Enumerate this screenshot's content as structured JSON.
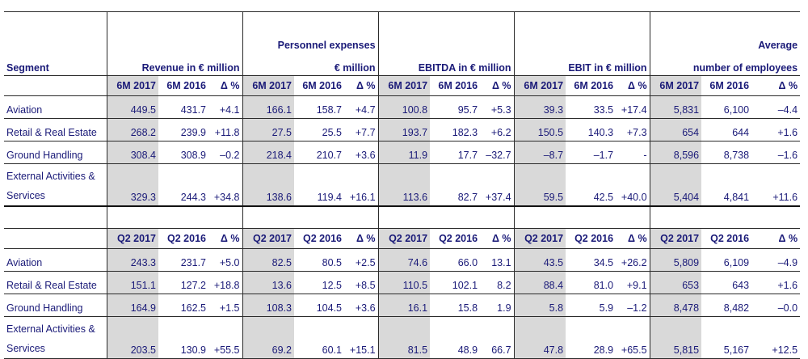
{
  "headers": {
    "segment": "Segment",
    "revenue": "Revenue in € million",
    "personnel_line1": "Personnel expenses",
    "personnel_line2": "€ million",
    "ebitda": "EBITDA in € million",
    "ebit": "EBIT in € million",
    "employees_line1": "Average",
    "employees_line2": "number of employees"
  },
  "period1": {
    "subheaders": [
      "6M 2017",
      "6M 2016",
      "Δ %"
    ],
    "rows": [
      {
        "segment": "Aviation",
        "values": [
          "449.5",
          "431.7",
          "+4.1",
          "166.1",
          "158.7",
          "+4.7",
          "100.8",
          "95.7",
          "+5.3",
          "39.3",
          "33.5",
          "+17.4",
          "5,831",
          "6,100",
          "–4.4"
        ]
      },
      {
        "segment": "Retail & Real Estate",
        "values": [
          "268.2",
          "239.9",
          "+11.8",
          "27.5",
          "25.5",
          "+7.7",
          "193.7",
          "182.3",
          "+6.2",
          "150.5",
          "140.3",
          "+7.3",
          "654",
          "644",
          "+1.6"
        ]
      },
      {
        "segment": "Ground Handling",
        "values": [
          "308.4",
          "308.9",
          "–0.2",
          "218.4",
          "210.7",
          "+3.6",
          "11.9",
          "17.7",
          "–32.7",
          "–8.7",
          "–1.7",
          "-",
          "8,596",
          "8,738",
          "–1.6"
        ]
      },
      {
        "segment": "External Activities & Services",
        "values": [
          "329.3",
          "244.3",
          "+34.8",
          "138.6",
          "119.4",
          "+16.1",
          "113.6",
          "82.7",
          "+37.4",
          "59.5",
          "42.5",
          "+40.0",
          "5,404",
          "4,841",
          "+11.6"
        ]
      }
    ]
  },
  "period2": {
    "subheaders": [
      "Q2 2017",
      "Q2 2016",
      "Δ %"
    ],
    "rows": [
      {
        "segment": "Aviation",
        "values": [
          "243.3",
          "231.7",
          "+5.0",
          "82.5",
          "80.5",
          "+2.5",
          "74.6",
          "66.0",
          "13.1",
          "43.5",
          "34.5",
          "+26.2",
          "5,809",
          "6,109",
          "–4.9"
        ]
      },
      {
        "segment": "Retail & Real Estate",
        "values": [
          "151.1",
          "127.2",
          "+18.8",
          "13.6",
          "12.5",
          "+8.5",
          "110.5",
          "102.1",
          "8.2",
          "88.4",
          "81.0",
          "+9.1",
          "653",
          "643",
          "+1.6"
        ]
      },
      {
        "segment": "Ground Handling",
        "values": [
          "164.9",
          "162.5",
          "+1.5",
          "108.3",
          "104.5",
          "+3.6",
          "16.1",
          "15.8",
          "1.9",
          "5.8",
          "5.9",
          "–1.2",
          "8,478",
          "8,482",
          "–0.0"
        ]
      },
      {
        "segment": "External Activities & Services",
        "values": [
          "203.5",
          "130.9",
          "+55.5",
          "69.2",
          "60.1",
          "+15.1",
          "81.5",
          "48.9",
          "66.7",
          "47.8",
          "28.9",
          "+65.5",
          "5,815",
          "5,167",
          "+12.5"
        ]
      }
    ]
  },
  "colors": {
    "text": "#1a1a78",
    "shade": "#d9d9d9",
    "rule": "#2a2a2a"
  }
}
